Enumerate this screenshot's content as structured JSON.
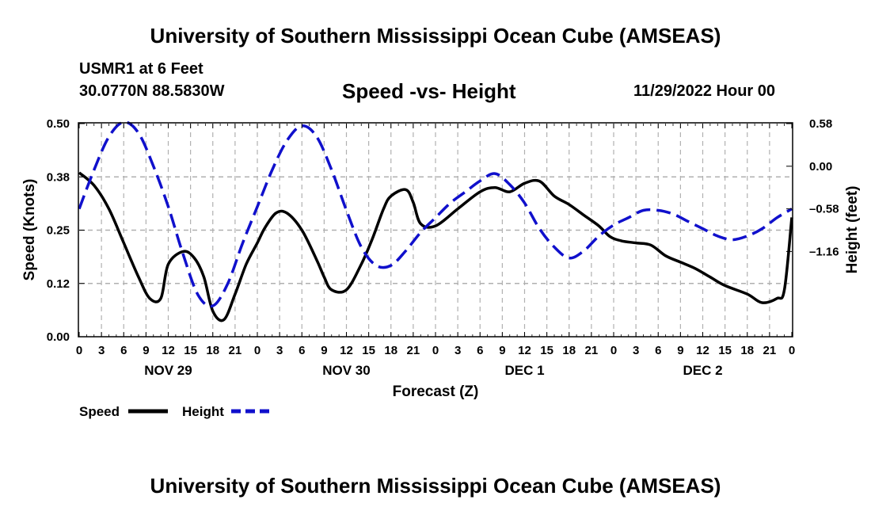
{
  "header": {
    "title": "University of Southern Mississippi Ocean Cube (AMSEAS)",
    "station": "USMR1 at 6 Feet",
    "coords": "30.0770N  88.5830W",
    "subtitle": "Speed -vs- Height",
    "datetime": "11/29/2022 Hour 00"
  },
  "footer": {
    "title": "University of Southern Mississippi Ocean Cube (AMSEAS)"
  },
  "legend": {
    "speed_label": "Speed",
    "height_label": "Height"
  },
  "chart_data": {
    "type": "line",
    "xlabel": "Forecast (Z)",
    "ylabel": "Speed (Knots)",
    "y2label": "Height (feet)",
    "xlim": [
      0,
      96
    ],
    "ylim": [
      0,
      0.5
    ],
    "y2lim": [
      -2.32,
      0.58
    ],
    "x_ticks": [
      0,
      3,
      6,
      9,
      12,
      15,
      18,
      21,
      24,
      27,
      30,
      33,
      36,
      39,
      42,
      45,
      48,
      51,
      54,
      57,
      60,
      63,
      66,
      69,
      72,
      75,
      78,
      81,
      84,
      87,
      90,
      93,
      96
    ],
    "x_tick_labels": [
      "0",
      "3",
      "6",
      "9",
      "12",
      "15",
      "18",
      "21",
      "0",
      "3",
      "6",
      "9",
      "12",
      "15",
      "18",
      "21",
      "0",
      "3",
      "6",
      "9",
      "12",
      "15",
      "18",
      "21",
      "0",
      "3",
      "6",
      "9",
      "12",
      "15",
      "18",
      "21",
      "0"
    ],
    "day_labels": [
      {
        "x": 12,
        "label": "NOV 29"
      },
      {
        "x": 36,
        "label": "NOV 30"
      },
      {
        "x": 60,
        "label": "DEC 1"
      },
      {
        "x": 84,
        "label": "DEC 2"
      }
    ],
    "y_ticks": [
      0,
      0.125,
      0.25,
      0.375,
      0.5
    ],
    "y_tick_labels": [
      "0.00",
      "0.12",
      "0.25",
      "0.38",
      "0.50"
    ],
    "y2_ticks": [
      -1.16,
      -0.58,
      0.0,
      0.58
    ],
    "y2_tick_labels": [
      "–1.16",
      "–0.58",
      "0.00",
      "0.58"
    ],
    "grid": true,
    "series": [
      {
        "name": "Speed",
        "axis": "left",
        "color": "#000000",
        "dash": "solid",
        "x": [
          0,
          2,
          4,
          6,
          8,
          9.5,
          11,
          12,
          14,
          15.5,
          16.8,
          18,
          19.5,
          21,
          22.5,
          24,
          25,
          26.5,
          28,
          30,
          32,
          33,
          34,
          36,
          38,
          39.5,
          41,
          42,
          44,
          45,
          46,
          48,
          51,
          54,
          56,
          58,
          60,
          62,
          64,
          66,
          68,
          70,
          71.5,
          73,
          75,
          77,
          79,
          81,
          83,
          85,
          87,
          90,
          92,
          94,
          95,
          96
        ],
        "y": [
          0.385,
          0.355,
          0.3,
          0.22,
          0.14,
          0.09,
          0.09,
          0.17,
          0.2,
          0.185,
          0.14,
          0.06,
          0.04,
          0.1,
          0.17,
          0.22,
          0.255,
          0.29,
          0.29,
          0.25,
          0.18,
          0.14,
          0.11,
          0.11,
          0.17,
          0.23,
          0.3,
          0.33,
          0.345,
          0.315,
          0.265,
          0.26,
          0.3,
          0.34,
          0.35,
          0.34,
          0.36,
          0.365,
          0.33,
          0.31,
          0.285,
          0.26,
          0.235,
          0.225,
          0.22,
          0.215,
          0.19,
          0.175,
          0.16,
          0.14,
          0.12,
          0.1,
          0.08,
          0.09,
          0.11,
          0.28
        ]
      },
      {
        "name": "Height",
        "axis": "right",
        "color": "#1010cc",
        "dash": "dashed",
        "x": [
          0,
          2,
          4,
          6,
          8,
          10,
          12,
          14,
          16,
          18,
          20,
          22,
          24,
          26,
          28,
          30,
          32,
          34,
          36,
          38,
          40,
          42,
          44,
          46,
          48,
          50,
          52,
          54,
          56,
          58,
          60,
          62,
          64,
          66,
          68,
          70,
          72,
          74,
          76,
          78,
          80,
          82,
          84,
          86,
          88,
          90,
          92,
          94,
          96
        ],
        "y": [
          -0.58,
          -0.05,
          0.4,
          0.6,
          0.45,
          0.0,
          -0.55,
          -1.2,
          -1.75,
          -1.9,
          -1.6,
          -1.05,
          -0.55,
          -0.05,
          0.35,
          0.55,
          0.4,
          -0.05,
          -0.6,
          -1.1,
          -1.35,
          -1.35,
          -1.15,
          -0.9,
          -0.7,
          -0.5,
          -0.35,
          -0.2,
          -0.1,
          -0.25,
          -0.5,
          -0.85,
          -1.1,
          -1.25,
          -1.15,
          -0.95,
          -0.8,
          -0.7,
          -0.6,
          -0.6,
          -0.65,
          -0.75,
          -0.85,
          -0.95,
          -1.0,
          -0.95,
          -0.85,
          -0.7,
          -0.58
        ]
      }
    ]
  }
}
